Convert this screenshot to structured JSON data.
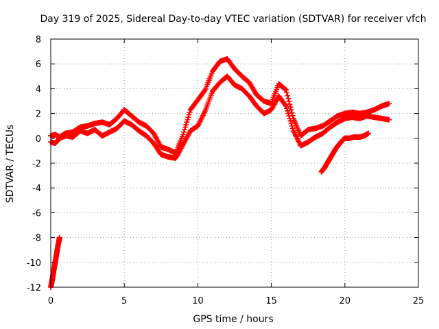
{
  "chart_data": {
    "type": "scatter",
    "title": "Day 319 of 2025, Sidereal Day-to-day VTEC variation (SDTVAR) for receiver vfch",
    "xlabel": "GPS time / hours",
    "ylabel": "SDTVAR / TECUs",
    "xlim": [
      0,
      25
    ],
    "ylim": [
      -12,
      8
    ],
    "x_ticks": [
      0,
      5,
      10,
      15,
      20,
      25
    ],
    "y_ticks": [
      -12,
      -10,
      -8,
      -6,
      -4,
      -2,
      0,
      2,
      4,
      6,
      8
    ],
    "grid": true,
    "marker": "+",
    "colors": {
      "series": "#ff0000",
      "axes": "#000000",
      "grid": "#a0a0a0"
    },
    "series": [
      {
        "name": "early-track",
        "x": [
          0.0,
          0.1,
          0.2,
          0.3,
          0.4,
          0.5,
          0.6
        ],
        "y": [
          -12.0,
          -11.4,
          -10.7,
          -10.0,
          -9.3,
          -8.6,
          -8.0
        ]
      },
      {
        "name": "track-a",
        "x": [
          0.0,
          0.3,
          0.6,
          1.0,
          1.5,
          2.0,
          2.5,
          3.0,
          3.5,
          4.0,
          4.5,
          5.0,
          5.5,
          6.0,
          6.5,
          7.0,
          7.5,
          8.0,
          8.5,
          9.0,
          9.5,
          10.0,
          10.5,
          11.0,
          11.5,
          12.0,
          12.5,
          13.0,
          13.5,
          14.0,
          14.5,
          15.0,
          15.5,
          16.0,
          16.5,
          17.0,
          17.5,
          18.0,
          18.5,
          19.0,
          19.5,
          20.0,
          20.5,
          21.0,
          21.5,
          22.0,
          22.5,
          23.0
        ],
        "y": [
          0.2,
          0.3,
          0.1,
          0.4,
          0.5,
          0.9,
          1.0,
          1.2,
          1.3,
          1.1,
          1.6,
          2.3,
          1.8,
          1.3,
          1.0,
          0.4,
          -0.7,
          -0.9,
          -1.2,
          0.3,
          2.3,
          3.1,
          3.9,
          5.4,
          6.2,
          6.4,
          5.6,
          5.0,
          4.5,
          3.5,
          3.0,
          2.8,
          4.4,
          3.9,
          1.6,
          0.2,
          0.7,
          0.8,
          1.0,
          1.4,
          1.8,
          2.0,
          2.1,
          2.0,
          2.1,
          2.3,
          2.6,
          2.8
        ]
      },
      {
        "name": "track-b",
        "x": [
          0.0,
          0.3,
          0.6,
          1.0,
          1.5,
          2.0,
          2.5,
          3.0,
          3.5,
          4.0,
          4.5,
          5.0,
          5.5,
          6.0,
          6.5,
          7.0,
          7.5,
          8.0,
          8.5,
          9.0,
          9.5,
          10.0,
          10.5,
          11.0,
          11.5,
          12.0,
          12.5,
          13.0,
          13.5,
          14.0,
          14.5,
          15.0,
          15.5,
          16.0,
          16.5,
          17.0,
          17.5,
          18.0,
          18.5,
          19.0,
          19.5,
          20.0,
          20.5,
          21.0,
          21.5,
          22.0,
          22.5,
          23.0
        ],
        "y": [
          -0.3,
          -0.4,
          0.0,
          0.2,
          0.1,
          0.6,
          0.4,
          0.7,
          0.2,
          0.5,
          0.8,
          1.4,
          1.1,
          0.6,
          0.2,
          -0.4,
          -1.3,
          -1.5,
          -1.6,
          -0.5,
          0.6,
          1.0,
          2.2,
          3.8,
          4.5,
          5.0,
          4.3,
          4.0,
          3.4,
          2.6,
          2.0,
          2.3,
          3.4,
          2.6,
          0.6,
          -0.6,
          -0.3,
          0.1,
          0.4,
          0.9,
          1.3,
          1.6,
          1.7,
          1.6,
          1.8,
          1.7,
          1.6,
          1.5
        ]
      },
      {
        "name": "late-track",
        "x": [
          18.4,
          18.6,
          18.8,
          19.0,
          19.2,
          19.4,
          19.6,
          19.8,
          20.0,
          20.3,
          20.6,
          21.0,
          21.3,
          21.6
        ],
        "y": [
          -2.7,
          -2.4,
          -2.0,
          -1.6,
          -1.2,
          -0.8,
          -0.5,
          -0.2,
          0.0,
          0.0,
          0.1,
          0.1,
          0.2,
          0.4
        ]
      }
    ]
  }
}
